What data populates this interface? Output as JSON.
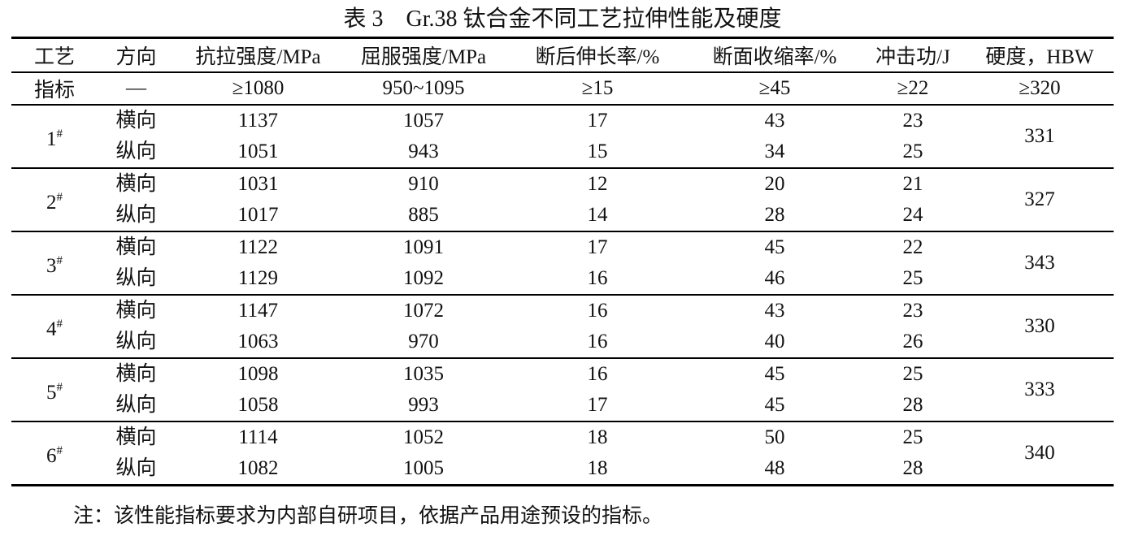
{
  "title": "表 3　Gr.38 钛合金不同工艺拉伸性能及硬度",
  "headers": [
    "工艺",
    "方向",
    "抗拉强度/MPa",
    "屈服强度/MPa",
    "断后伸长率/%",
    "断面收缩率/%",
    "冲击功/J",
    "硬度，HBW"
  ],
  "index_row": [
    "指标",
    "—",
    "≥1080",
    "950~1095",
    "≥15",
    "≥45",
    "≥22",
    "≥320"
  ],
  "groups": [
    {
      "process": "1",
      "sup": "#",
      "hardness": "331",
      "rows": [
        [
          "横向",
          "1137",
          "1057",
          "17",
          "43",
          "23"
        ],
        [
          "纵向",
          "1051",
          "943",
          "15",
          "34",
          "25"
        ]
      ]
    },
    {
      "process": "2",
      "sup": "#",
      "hardness": "327",
      "rows": [
        [
          "横向",
          "1031",
          "910",
          "12",
          "20",
          "21"
        ],
        [
          "纵向",
          "1017",
          "885",
          "14",
          "28",
          "24"
        ]
      ]
    },
    {
      "process": "3",
      "sup": "#",
      "hardness": "343",
      "rows": [
        [
          "横向",
          "1122",
          "1091",
          "17",
          "45",
          "22"
        ],
        [
          "纵向",
          "1129",
          "1092",
          "16",
          "46",
          "25"
        ]
      ]
    },
    {
      "process": "4",
      "sup": "#",
      "hardness": "330",
      "rows": [
        [
          "横向",
          "1147",
          "1072",
          "16",
          "43",
          "23"
        ],
        [
          "纵向",
          "1063",
          "970",
          "16",
          "40",
          "26"
        ]
      ]
    },
    {
      "process": "5",
      "sup": "#",
      "hardness": "333",
      "rows": [
        [
          "横向",
          "1098",
          "1035",
          "16",
          "45",
          "25"
        ],
        [
          "纵向",
          "1058",
          "993",
          "17",
          "45",
          "28"
        ]
      ]
    },
    {
      "process": "6",
      "sup": "#",
      "hardness": "340",
      "rows": [
        [
          "横向",
          "1114",
          "1052",
          "18",
          "50",
          "25"
        ],
        [
          "纵向",
          "1082",
          "1005",
          "18",
          "48",
          "28"
        ]
      ]
    }
  ],
  "note": "注：该性能指标要求为内部自研项目，依据产品用途预设的指标。"
}
